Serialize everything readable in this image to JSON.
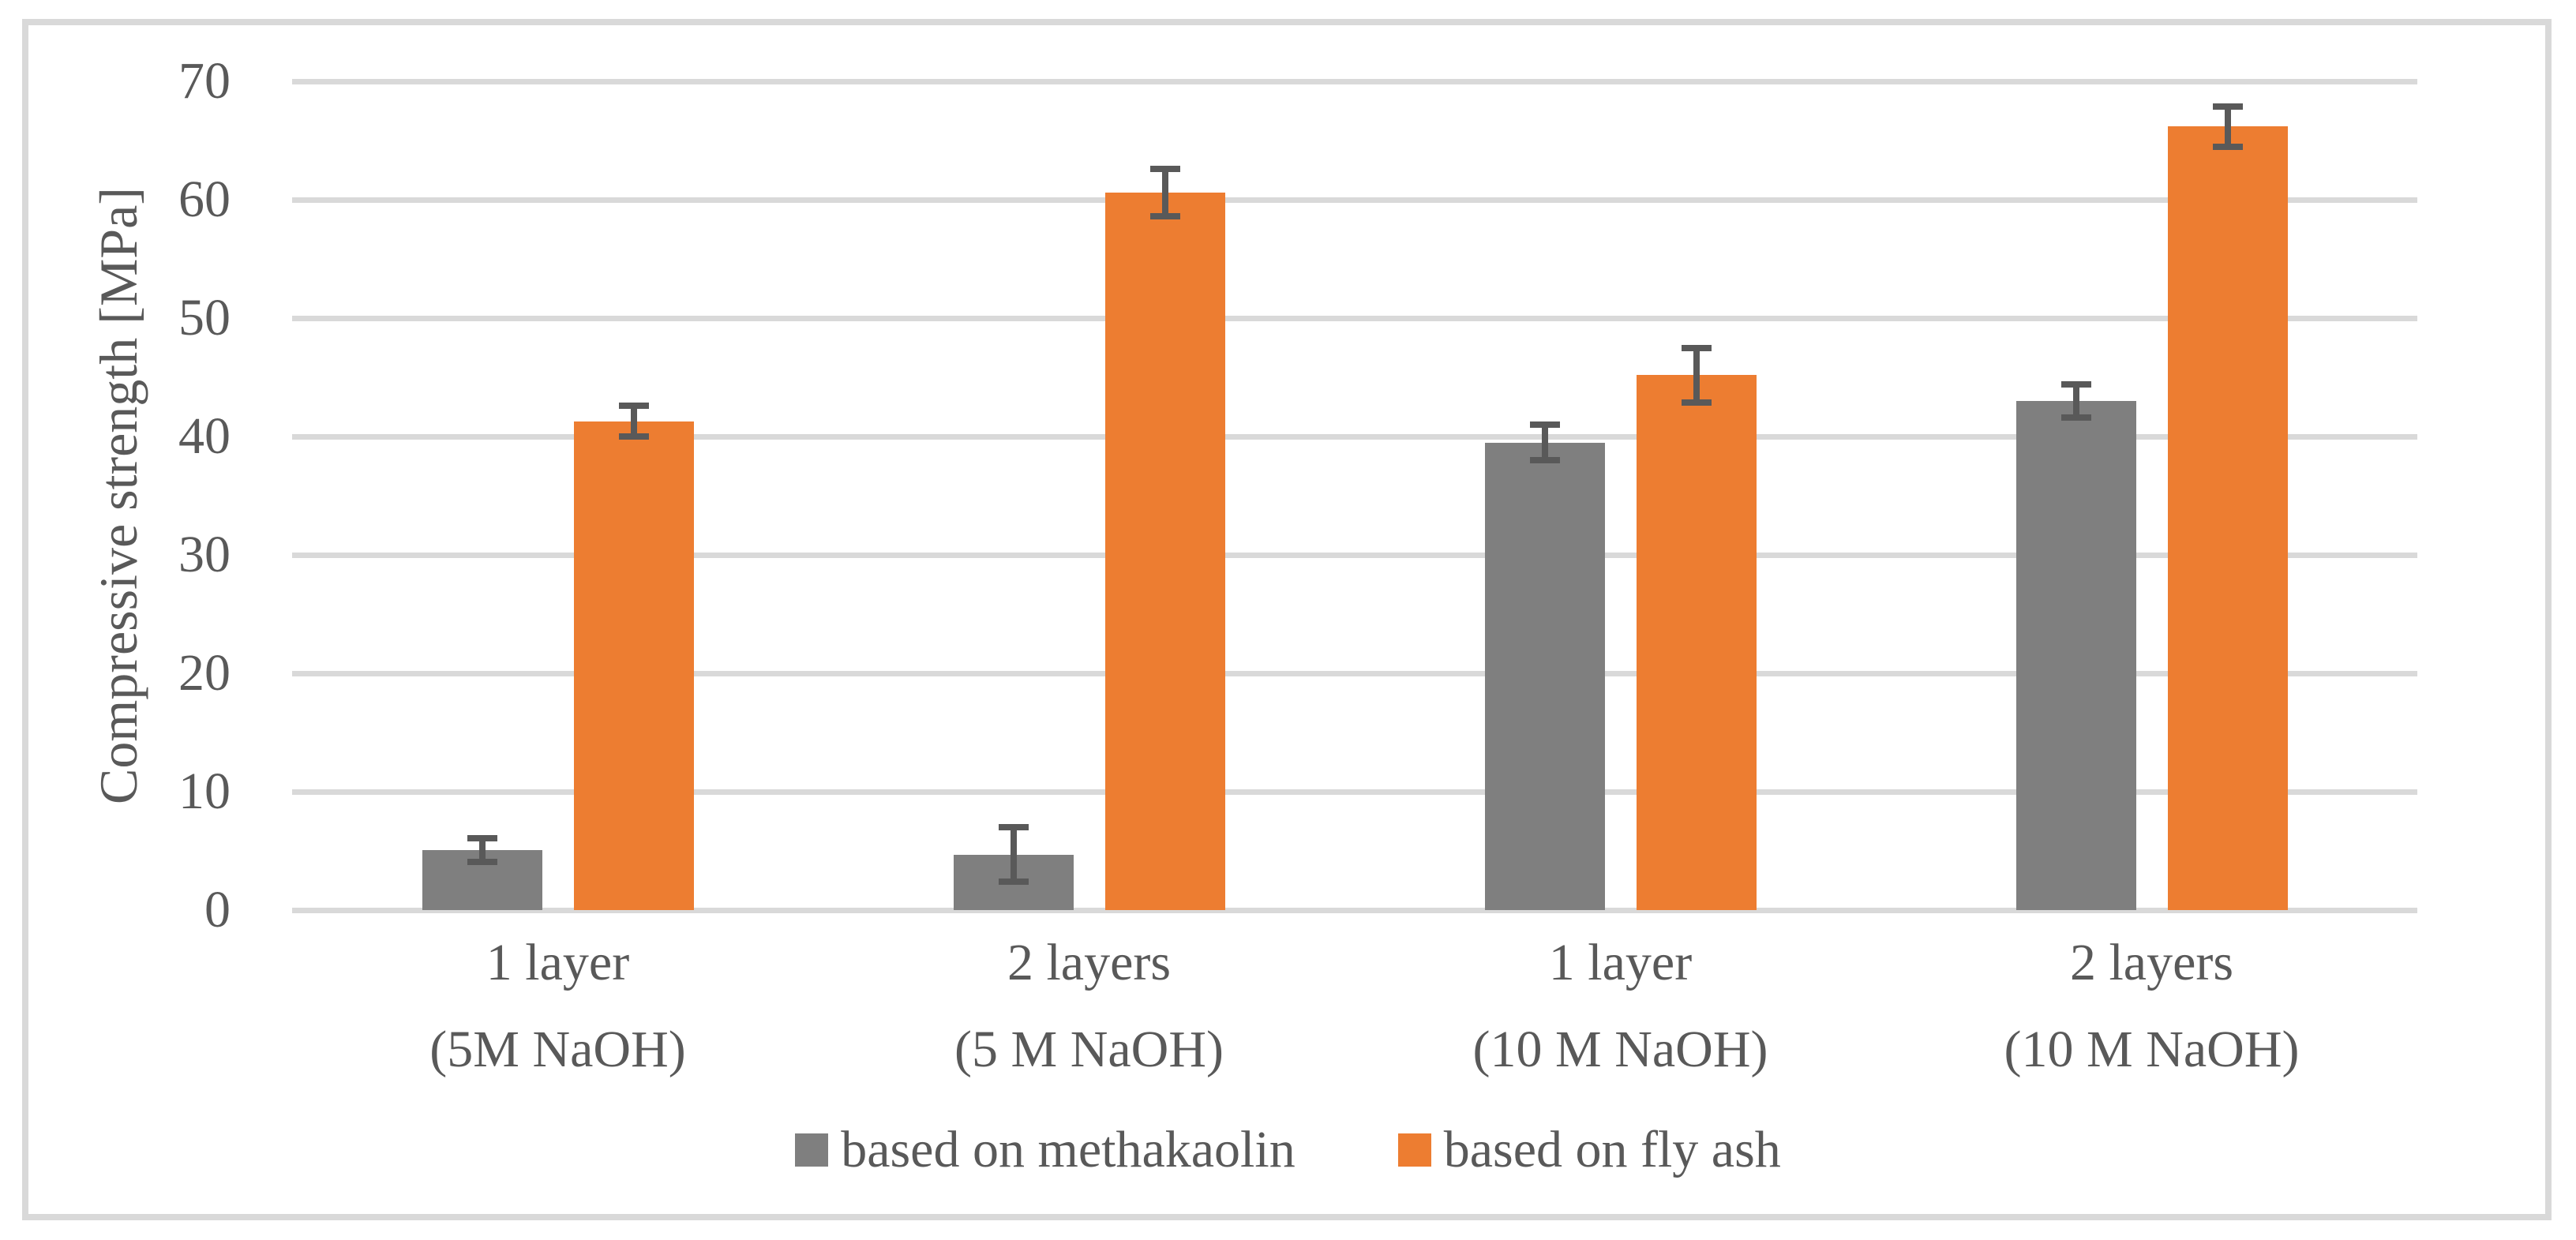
{
  "colors": {
    "frame_border": "#D9D9D9",
    "gridline": "#D9D9D9",
    "text": "#595959",
    "error_bar": "#595959",
    "series_methakaolin": "#7F7F7F",
    "series_fly_ash": "#ED7D31",
    "background": "#FFFFFF"
  },
  "chart_data": {
    "type": "bar",
    "title": "",
    "ylabel": "Compressive strength [MPa]",
    "xlabel": "",
    "ylim": [
      0,
      70
    ],
    "yticks": [
      0,
      10,
      20,
      30,
      40,
      50,
      60,
      70
    ],
    "grid": true,
    "legend_position": "bottom",
    "categories": [
      {
        "line1": "1 layer",
        "line2": "(5M NaOH)"
      },
      {
        "line1": "2 layers",
        "line2": "(5 M NaOH)"
      },
      {
        "line1": "1 layer",
        "line2": "(10 M NaOH)"
      },
      {
        "line1": "2 layers",
        "line2": "(10 M NaOH)"
      }
    ],
    "series": [
      {
        "name": "based on methakaolin",
        "color": "#7F7F7F",
        "values": [
          5.1,
          4.7,
          39.5,
          43.0
        ],
        "errors": [
          1.0,
          2.3,
          1.5,
          1.4
        ]
      },
      {
        "name": "based on fly ash",
        "color": "#ED7D31",
        "values": [
          41.3,
          60.6,
          45.2,
          66.2
        ],
        "errors": [
          1.3,
          2.0,
          2.3,
          1.7
        ]
      }
    ]
  }
}
